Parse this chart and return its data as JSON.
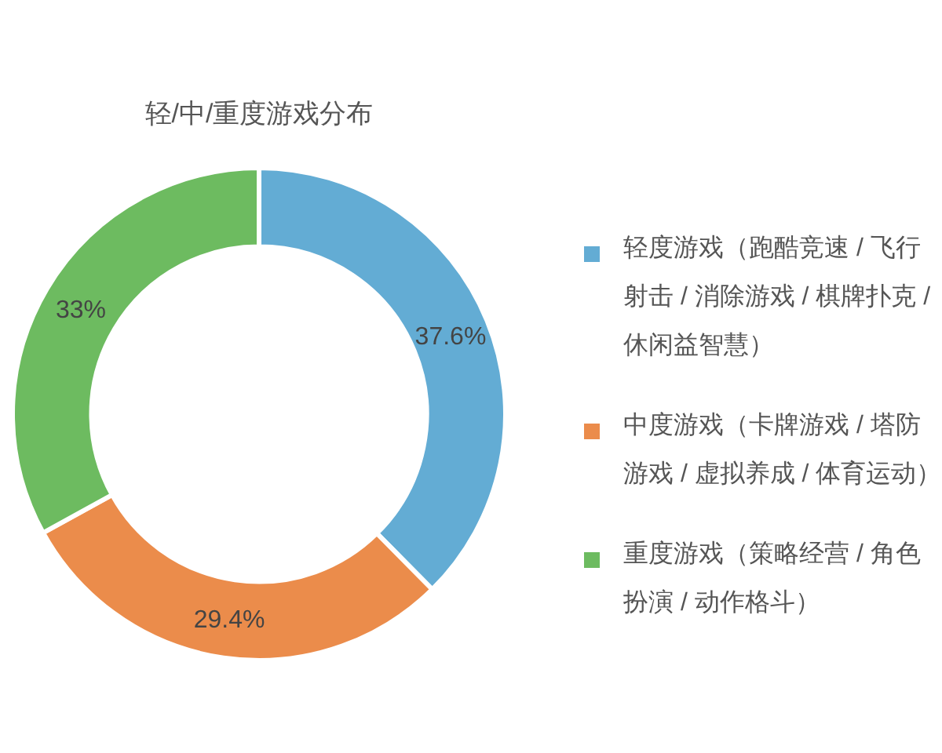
{
  "chart_data": {
    "type": "donut",
    "title": "轻/中/重度游戏分布",
    "categories": [
      "轻度游戏（跑酷竞速 / 飞行射击 / 消除游戏 / 棋牌扑克 / 休闲益智慧）",
      "中度游戏（卡牌游戏 / 塔防游戏 / 虚拟养成 / 体育运动）",
      "重度游戏（策略经营 / 角色扮演 / 动作格斗）"
    ],
    "values": [
      37.6,
      29.4,
      33
    ],
    "colors": [
      "#63acd4",
      "#eb8c4b",
      "#6dbb60"
    ],
    "value_labels": [
      "37.6%",
      "29.4%",
      "33%"
    ],
    "legend": "right"
  }
}
